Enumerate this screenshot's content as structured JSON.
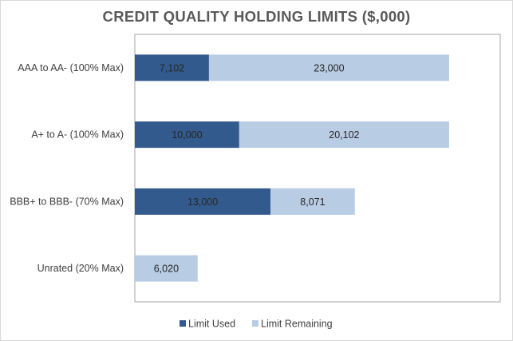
{
  "chart_data": {
    "type": "bar",
    "orientation": "horizontal",
    "stacked": true,
    "title": "CREDIT QUALITY HOLDING LIMITS ($,000)",
    "categories": [
      "AAA to AA-  (100% Max)",
      "A+ to A-  (100% Max)",
      "BBB+ to BBB- (70% Max)",
      "Unrated (20% Max)"
    ],
    "series": [
      {
        "name": "Limit Used",
        "values": [
          7102,
          10000,
          13000,
          0
        ],
        "labels": [
          "7,102",
          "10,000",
          "13,000",
          "0"
        ],
        "color": "#335a8c"
      },
      {
        "name": "Limit Remaining",
        "values": [
          23000,
          20102,
          8071,
          6020
        ],
        "labels": [
          "23,000",
          "20,102",
          "8,071",
          "6,020"
        ],
        "color": "#b8cce4"
      }
    ],
    "xlim": [
      0,
      35000
    ],
    "grid": false,
    "legend": "bottom"
  }
}
